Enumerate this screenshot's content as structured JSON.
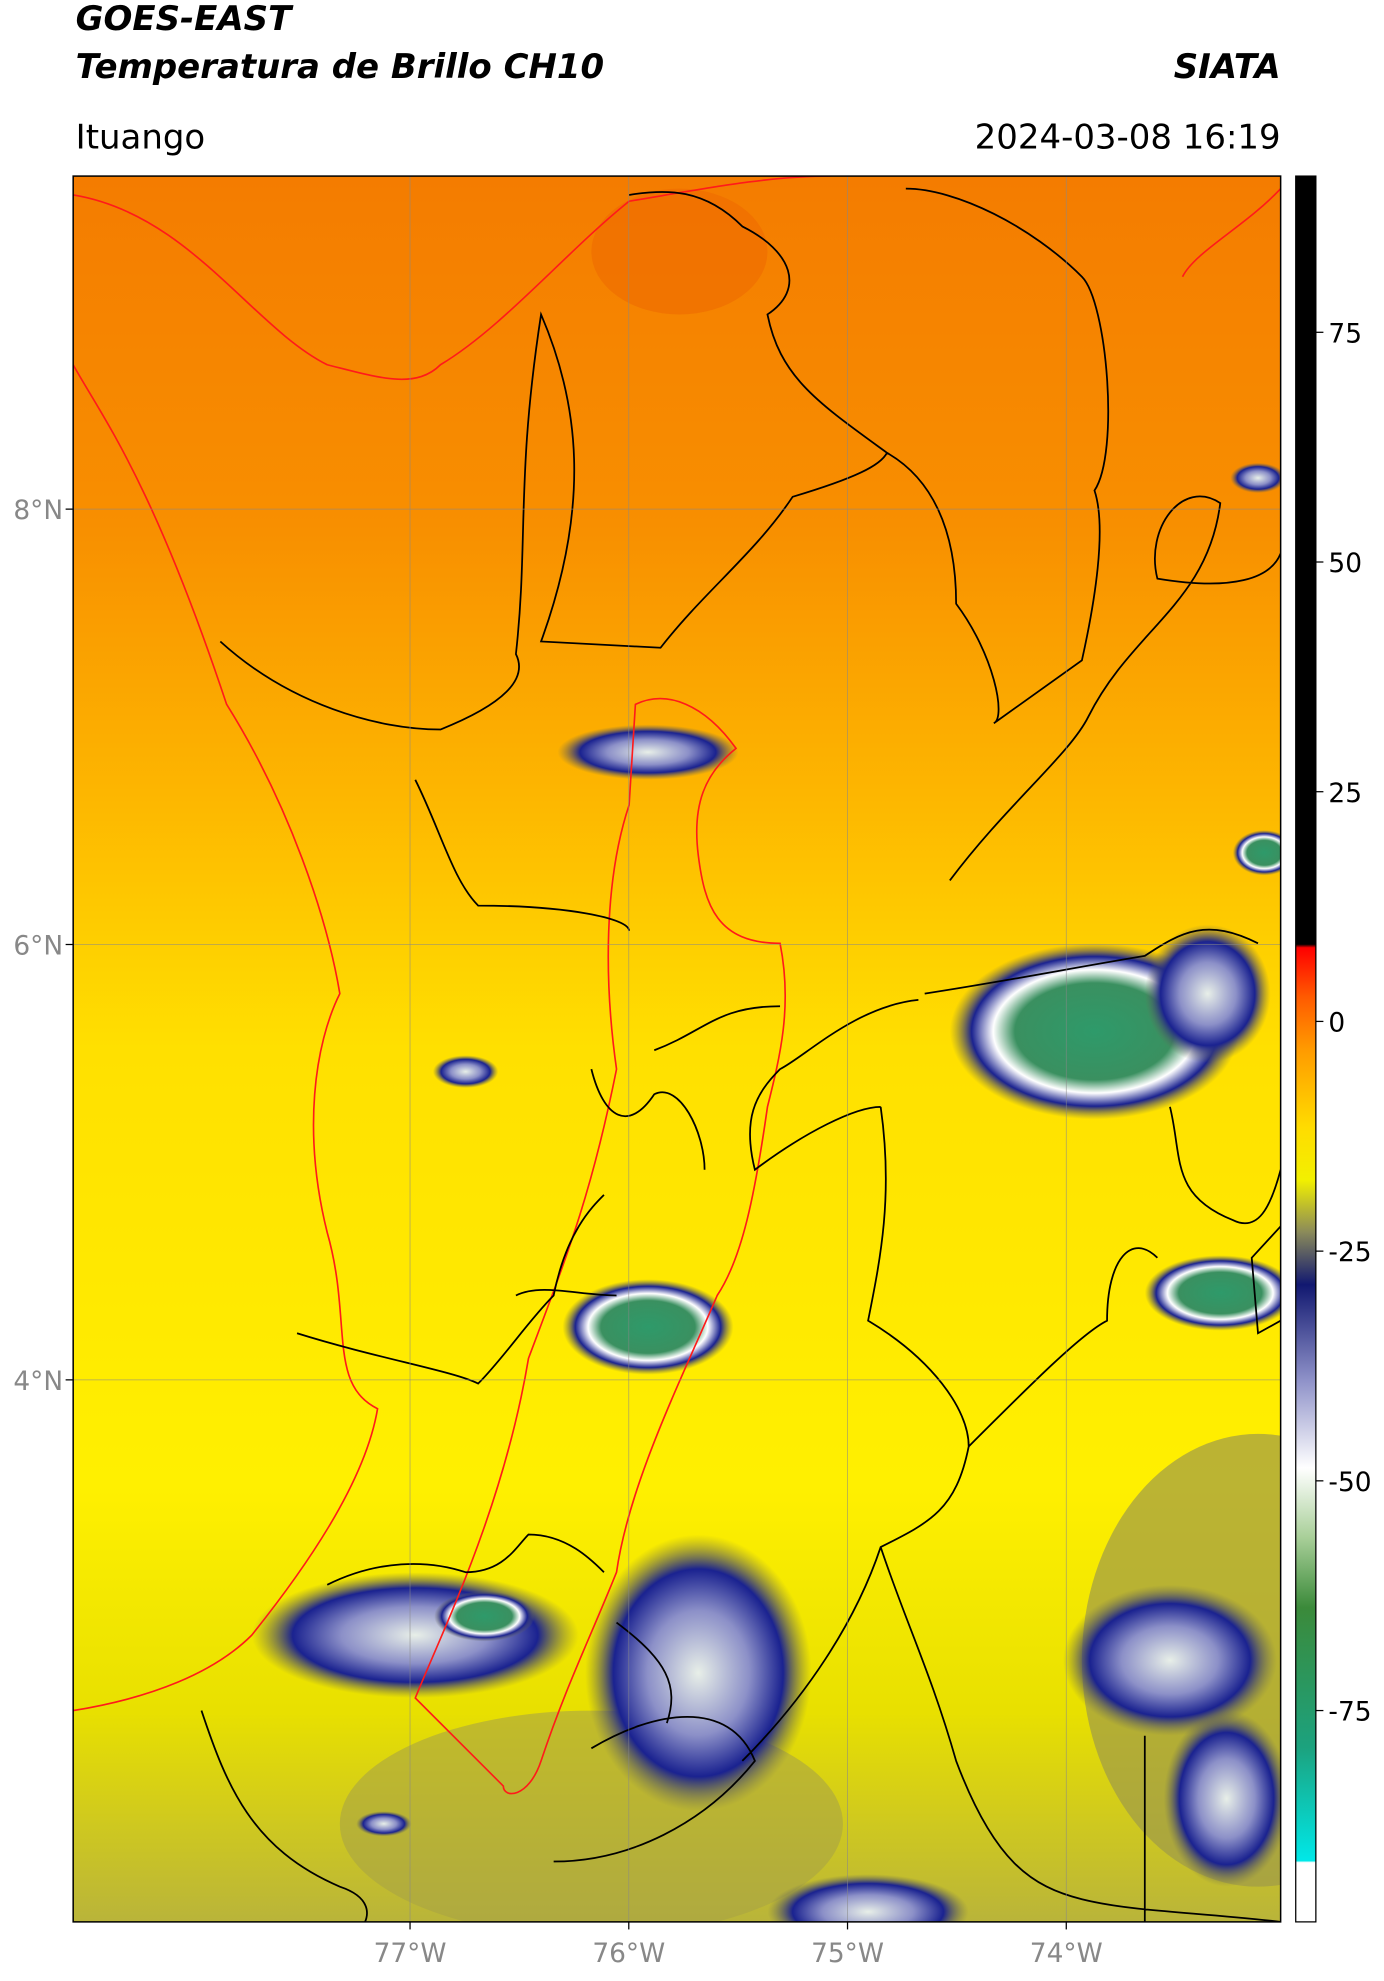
{
  "header": {
    "title": "GOES-EAST",
    "subtitle": "Temperatura de Brillo CH10",
    "agency": "SIATA",
    "location": "Ituango",
    "datetime": "2024-03-08 16:19"
  },
  "map": {
    "xlim": [
      -78.54,
      -73.02
    ],
    "ylim": [
      1.51,
      9.53
    ],
    "xticks": [
      {
        "value": -77,
        "label": "77°W"
      },
      {
        "value": -76,
        "label": "76°W"
      },
      {
        "value": -75,
        "label": "75°W"
      },
      {
        "value": -74,
        "label": "74°W"
      }
    ],
    "yticks": [
      {
        "value": 8,
        "label": "8°N"
      },
      {
        "value": 6,
        "label": "6°N"
      },
      {
        "value": 4,
        "label": "4°N"
      }
    ],
    "grid": true
  },
  "colorbar": {
    "clim": [
      -98,
      92
    ],
    "ticks": [
      75,
      50,
      25,
      0,
      -25,
      -50,
      -75
    ]
  }
}
